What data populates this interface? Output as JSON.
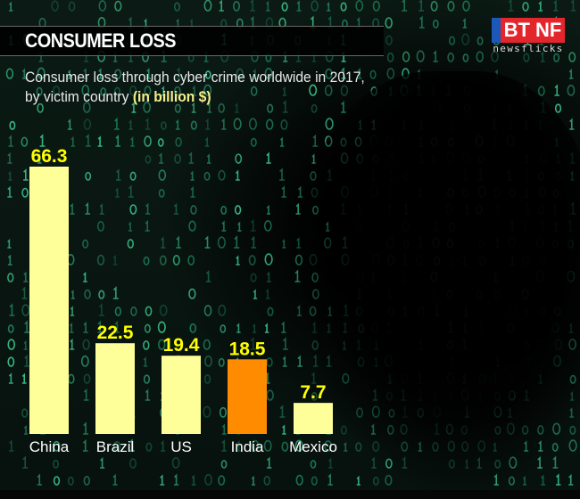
{
  "header": {
    "title": "CONSUMER LOSS",
    "subtitle": "Consumer loss through cyber crime worldwide in 2017, by victim country",
    "unit": "(in billion $)"
  },
  "logo": {
    "brand": "BT NF",
    "tagline": "newsflicks"
  },
  "chart_data": {
    "type": "bar",
    "categories": [
      "China",
      "Brazil",
      "US",
      "India",
      "Mexico"
    ],
    "values": [
      66.3,
      22.5,
      19.4,
      18.5,
      7.7
    ],
    "title": "CONSUMER LOSS",
    "subtitle": "Consumer loss through cyber crime worldwide in 2017, by victim country",
    "ylabel": "(in billion $)",
    "value_labels": [
      "66.3",
      "22.5",
      "19.4",
      "18.5",
      "7.7"
    ],
    "colors": [
      "#ffff99",
      "#ffff99",
      "#ffff99",
      "#ff8c00",
      "#ffff99"
    ],
    "label_color": "#ffff00",
    "highlight": "India",
    "grid": false,
    "ylim": [
      0,
      66.3
    ]
  }
}
